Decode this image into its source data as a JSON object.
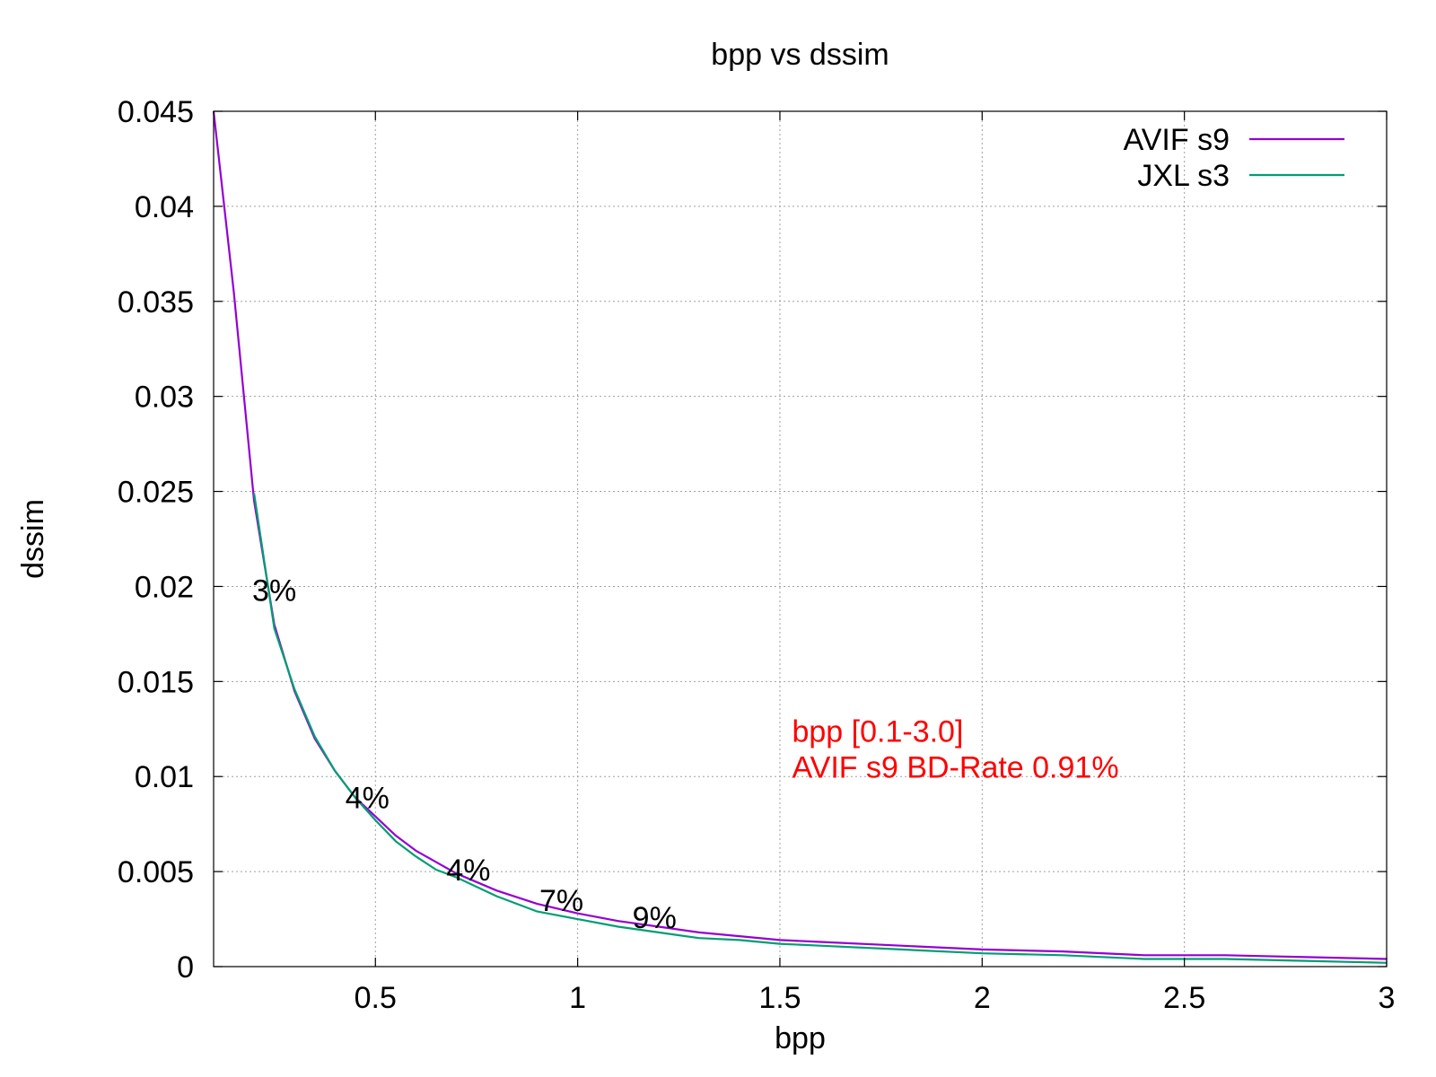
{
  "chart_data": {
    "type": "line",
    "title": "bpp vs dssim",
    "xlabel": "bpp",
    "ylabel": "dssim",
    "xlim": [
      0.1,
      3.0
    ],
    "ylim": [
      0,
      0.045
    ],
    "x_ticks": [
      {
        "value": 0.5,
        "label": "0.5"
      },
      {
        "value": 1.0,
        "label": "1"
      },
      {
        "value": 1.5,
        "label": "1.5"
      },
      {
        "value": 2.0,
        "label": "2"
      },
      {
        "value": 2.5,
        "label": "2.5"
      },
      {
        "value": 3.0,
        "label": "3"
      }
    ],
    "y_ticks": [
      {
        "value": 0,
        "label": "0"
      },
      {
        "value": 0.005,
        "label": "0.005"
      },
      {
        "value": 0.01,
        "label": "0.01"
      },
      {
        "value": 0.015,
        "label": "0.015"
      },
      {
        "value": 0.02,
        "label": "0.02"
      },
      {
        "value": 0.025,
        "label": "0.025"
      },
      {
        "value": 0.03,
        "label": "0.03"
      },
      {
        "value": 0.035,
        "label": "0.035"
      },
      {
        "value": 0.04,
        "label": "0.04"
      },
      {
        "value": 0.045,
        "label": "0.045"
      }
    ],
    "grid": true,
    "legend_position": "top-right",
    "series": [
      {
        "name": "AVIF s9",
        "color": "#9400d3",
        "x": [
          0.1,
          0.15,
          0.2,
          0.25,
          0.3,
          0.35,
          0.4,
          0.45,
          0.5,
          0.55,
          0.6,
          0.7,
          0.8,
          0.9,
          1.0,
          1.1,
          1.2,
          1.3,
          1.4,
          1.5,
          1.6,
          1.8,
          2.0,
          2.2,
          2.4,
          2.6,
          2.8,
          3.0
        ],
        "y": [
          0.045,
          0.0355,
          0.0245,
          0.018,
          0.0145,
          0.012,
          0.0103,
          0.0089,
          0.0079,
          0.0069,
          0.0061,
          0.0049,
          0.004,
          0.0033,
          0.0028,
          0.0024,
          0.0021,
          0.0018,
          0.0016,
          0.0014,
          0.0013,
          0.0011,
          0.0009,
          0.0008,
          0.0006,
          0.0006,
          0.0005,
          0.0004
        ]
      },
      {
        "name": "JXL s3",
        "color": "#009e73",
        "x": [
          0.2,
          0.25,
          0.3,
          0.35,
          0.4,
          0.45,
          0.5,
          0.55,
          0.6,
          0.65,
          0.7,
          0.8,
          0.9,
          1.0,
          1.1,
          1.2,
          1.3,
          1.4,
          1.5,
          1.6,
          1.8,
          2.0,
          2.2,
          2.4,
          2.6,
          2.8,
          3.0
        ],
        "y": [
          0.0249,
          0.0178,
          0.0146,
          0.0121,
          0.0103,
          0.0089,
          0.0077,
          0.0066,
          0.0058,
          0.0051,
          0.0047,
          0.0037,
          0.0029,
          0.0025,
          0.0021,
          0.0018,
          0.0015,
          0.0014,
          0.0012,
          0.0011,
          0.0009,
          0.0007,
          0.0006,
          0.0004,
          0.0004,
          0.0003,
          0.0002
        ]
      }
    ],
    "point_labels": [
      {
        "x": 0.25,
        "y": 0.0198,
        "text": "3%"
      },
      {
        "x": 0.48,
        "y": 0.0089,
        "text": "4%"
      },
      {
        "x": 0.73,
        "y": 0.0051,
        "text": "4%"
      },
      {
        "x": 0.96,
        "y": 0.0035,
        "text": "7%"
      },
      {
        "x": 1.19,
        "y": 0.0026,
        "text": "9%"
      }
    ],
    "annotations": [
      {
        "x": 1.53,
        "y": 0.0124,
        "text": "bpp [0.1-3.0]",
        "color": "#ff0000"
      },
      {
        "x": 1.53,
        "y": 0.0105,
        "text": "AVIF s9 BD-Rate 0.91%",
        "color": "#ff0000"
      }
    ]
  }
}
